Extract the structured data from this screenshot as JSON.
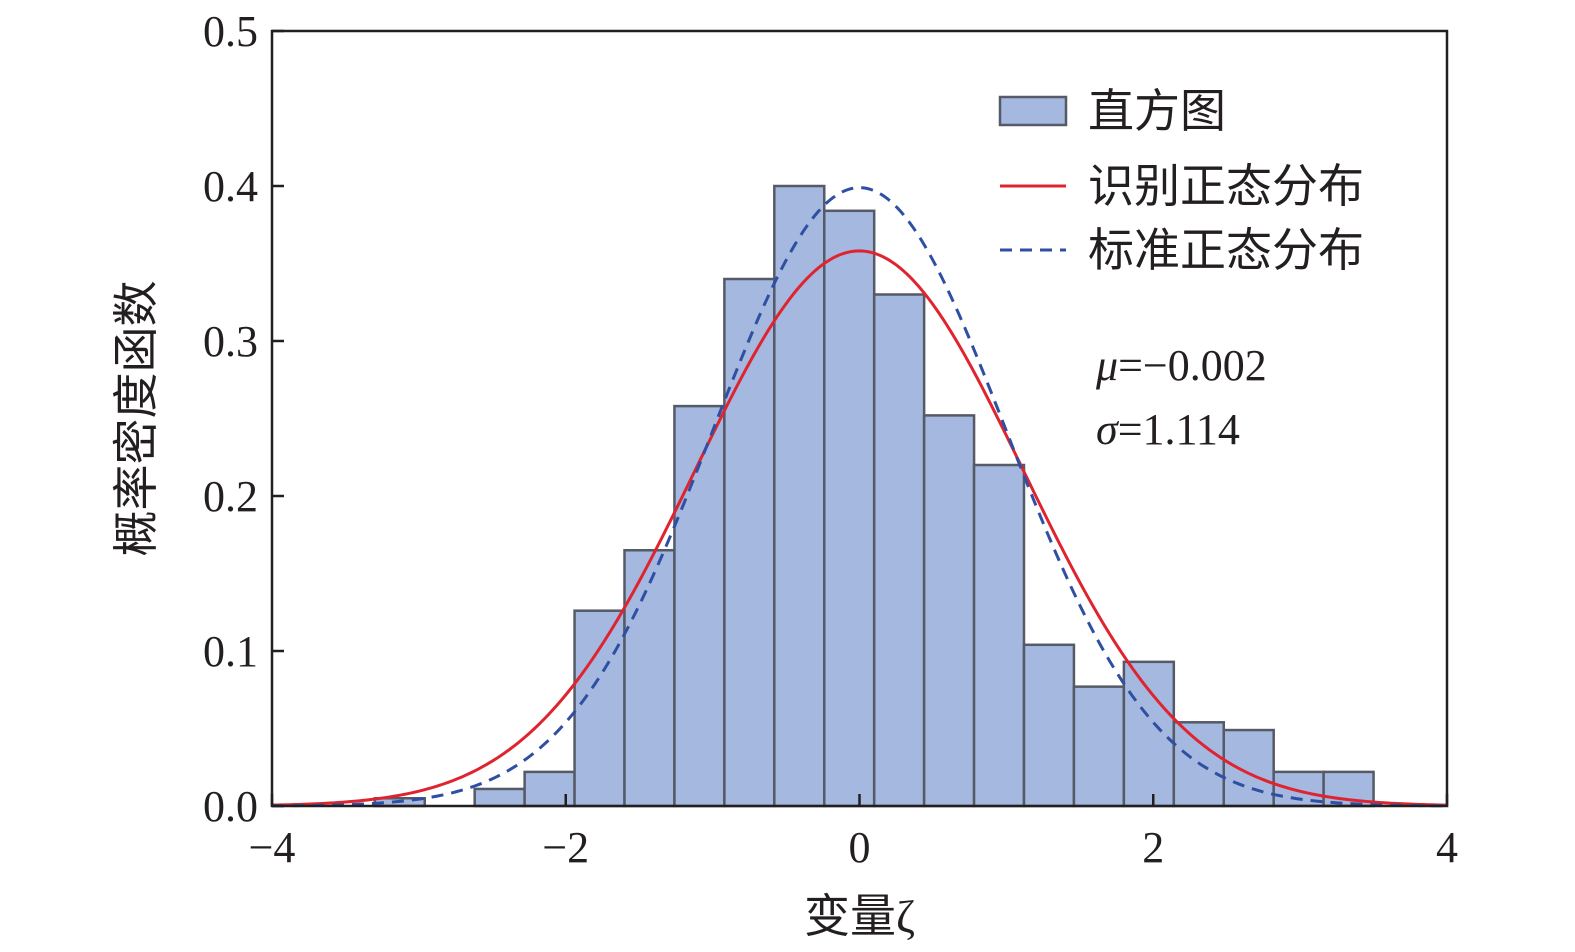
{
  "chart_data": {
    "type": "bar",
    "xlabel": "变量ζ",
    "ylabel": "概率密度函数",
    "xlim": [
      -4,
      4
    ],
    "ylim": [
      0,
      0.5
    ],
    "xticks": [
      "−4",
      "−2",
      "0",
      "2",
      "4"
    ],
    "xtick_values": [
      -4,
      -2,
      0,
      2,
      4
    ],
    "yticks": [
      "0.0",
      "0.1",
      "0.2",
      "0.3",
      "0.4",
      "0.5"
    ],
    "ytick_values": [
      0,
      0.1,
      0.2,
      0.3,
      0.4,
      0.5
    ],
    "grid": false,
    "legend_position": "top-right",
    "histogram": {
      "name": "直方图",
      "color": "#a4b8e0",
      "edge_color": "#555a66",
      "bin_edges": [
        -3.3,
        -2.96,
        -2.62,
        -2.28,
        -1.94,
        -1.6,
        -1.26,
        -0.92,
        -0.58,
        -0.24,
        0.1,
        0.44,
        0.78,
        1.12,
        1.46,
        1.8,
        2.14,
        2.48,
        2.82,
        3.16,
        3.5
      ],
      "values": [
        0.005,
        0.0,
        0.011,
        0.022,
        0.126,
        0.165,
        0.258,
        0.34,
        0.4,
        0.384,
        0.33,
        0.252,
        0.22,
        0.104,
        0.077,
        0.093,
        0.054,
        0.049,
        0.022,
        0.022
      ]
    },
    "series": [
      {
        "name": "识别正态分布",
        "style": "solid",
        "color": "#e0242f",
        "mu": -0.002,
        "sigma": 1.114
      },
      {
        "name": "标准正态分布",
        "style": "dashed",
        "color": "#2f4fa3",
        "mu": 0,
        "sigma": 1
      }
    ],
    "annotations": [
      {
        "symbol": "μ",
        "text": "=−0.002"
      },
      {
        "symbol": "σ",
        "text": "=1.114"
      }
    ]
  }
}
